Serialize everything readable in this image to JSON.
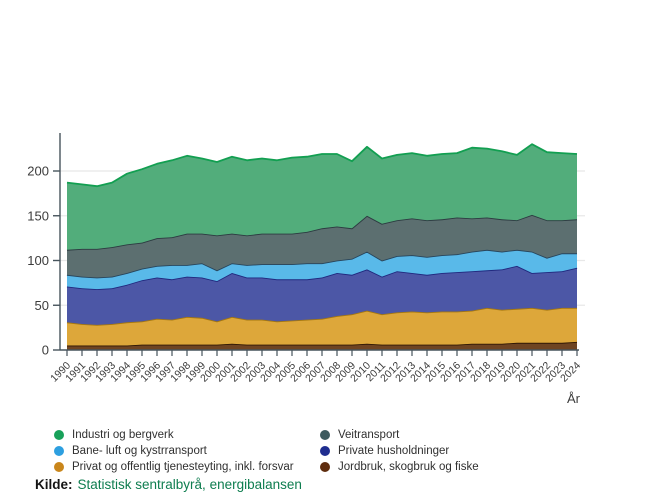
{
  "chart_data": {
    "type": "area",
    "stacked": true,
    "title": "",
    "xlabel": "År",
    "ylabel": "",
    "grid": true,
    "legend_position": "bottom",
    "ylim": [
      0,
      240
    ],
    "yticks": [
      0,
      50,
      100,
      150,
      200
    ],
    "x_years": [
      1990,
      1991,
      1992,
      1993,
      1994,
      1995,
      1996,
      1997,
      1998,
      1999,
      2000,
      2001,
      2002,
      2003,
      2004,
      2005,
      2006,
      2007,
      2008,
      2009,
      2010,
      2011,
      2012,
      2013,
      2014,
      2015,
      2016,
      2017,
      2018,
      2019,
      2020,
      2021,
      2022,
      2023,
      2024
    ],
    "series": [
      {
        "name": "Jordbruk, skogbruk og fiske",
        "fill": "#6e4422",
        "stroke": "#2e1604",
        "values": [
          5,
          5,
          5,
          5,
          5,
          6,
          6,
          6,
          6,
          6,
          6,
          7,
          6,
          6,
          6,
          6,
          6,
          6,
          6,
          6,
          7,
          6,
          6,
          6,
          6,
          6,
          6,
          7,
          7,
          7,
          8,
          8,
          8,
          8,
          9
        ]
      },
      {
        "name": "Privat og offentlig tjenesteyting, inkl. forsvar",
        "fill": "#dda73a",
        "stroke": "#a5770f",
        "values": [
          26,
          24,
          23,
          24,
          26,
          26,
          29,
          28,
          31,
          30,
          26,
          30,
          28,
          28,
          26,
          27,
          28,
          29,
          32,
          34,
          37,
          34,
          36,
          37,
          36,
          37,
          37,
          37,
          40,
          38,
          38,
          39,
          37,
          39,
          38
        ]
      },
      {
        "name": "Private husholdninger",
        "fill": "#4c57a6",
        "stroke": "#20287e",
        "values": [
          40,
          40,
          40,
          40,
          42,
          46,
          46,
          45,
          45,
          45,
          45,
          49,
          47,
          47,
          47,
          46,
          45,
          46,
          48,
          44,
          46,
          42,
          46,
          43,
          42,
          43,
          44,
          44,
          42,
          45,
          48,
          39,
          42,
          41,
          45
        ]
      },
      {
        "name": "Bane- luft og kystrransport",
        "fill": "#59b9e9",
        "stroke": "#27455c",
        "values": [
          13,
          13,
          13,
          13,
          13,
          13,
          13,
          16,
          13,
          16,
          12,
          11,
          14,
          15,
          17,
          17,
          18,
          16,
          14,
          18,
          20,
          18,
          17,
          20,
          20,
          20,
          20,
          22,
          23,
          20,
          18,
          24,
          16,
          20,
          16
        ]
      },
      {
        "name": "Veitransport",
        "fill": "#5c6f70",
        "stroke": "#2c3b41",
        "values": [
          28,
          31,
          32,
          33,
          32,
          29,
          31,
          31,
          35,
          33,
          39,
          33,
          33,
          34,
          34,
          34,
          35,
          39,
          38,
          34,
          40,
          41,
          40,
          41,
          41,
          40,
          41,
          37,
          36,
          36,
          33,
          41,
          42,
          37,
          38
        ]
      },
      {
        "name": "Industri og bergverk",
        "fill": "#52ad7b",
        "stroke": "#129f51",
        "values": [
          75,
          72,
          70,
          72,
          79,
          82,
          83,
          86,
          87,
          84,
          82,
          86,
          84,
          84,
          82,
          85,
          84,
          83,
          81,
          75,
          77,
          73,
          73,
          73,
          72,
          73,
          72,
          79,
          77,
          76,
          73,
          79,
          76,
          75,
          73
        ]
      }
    ]
  },
  "legend": {
    "items": [
      {
        "label": "Industri og bergverk",
        "color": "#18a15a"
      },
      {
        "label": "Bane- luft og kystrransport",
        "color": "#2d9fe0"
      },
      {
        "label": "Privat og offentlig tjenesteyting, inkl. forsvar",
        "color": "#c9861b"
      },
      {
        "label": "Veitransport",
        "color": "#3d5a5e"
      },
      {
        "label": "Private husholdninger",
        "color": "#1f2d8f"
      },
      {
        "label": "Jordbruk, skogbruk og fiske",
        "color": "#5e2c0e"
      }
    ]
  },
  "axis": {
    "x_title": "År",
    "y_tick_labels": [
      "0",
      "50",
      "100",
      "150",
      "200"
    ]
  },
  "source": {
    "label": "Kilde:",
    "text": "Statistisk sentralbyrå, energibalansen"
  },
  "colors": {
    "grid": "#e8e8e8",
    "axis": "#47545c",
    "tick_text": "#3c3c3c",
    "source_text_green": "#0e7d4f"
  }
}
